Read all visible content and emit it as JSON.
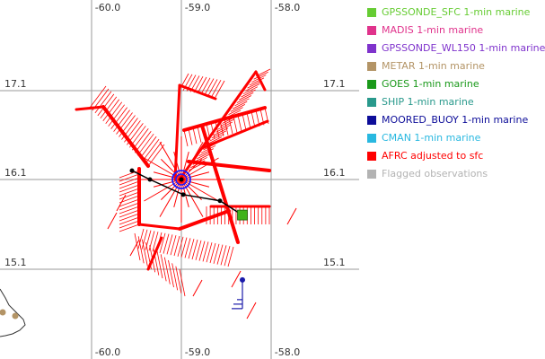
{
  "map": {
    "longitude_ticks": [
      "-60.0",
      "-59.0",
      "-58.0"
    ],
    "latitude_ticks": [
      "17.1",
      "16.1",
      "15.1"
    ],
    "storm_center": {
      "lon": -59.0,
      "lat": 16.1
    },
    "track": [
      {
        "lon": -58.32,
        "lat": 15.7
      },
      {
        "lon": -58.57,
        "lat": 15.86
      },
      {
        "lon": -58.98,
        "lat": 15.93
      },
      {
        "lon": -59.35,
        "lat": 16.1
      },
      {
        "lon": -59.55,
        "lat": 16.2
      }
    ],
    "sfc_marker": {
      "lon": -58.32,
      "lat": 15.7,
      "color": "#3fb31b"
    },
    "barb_marker": {
      "lon": -58.32,
      "lat": 14.97
    },
    "flight_color": "#ff0000",
    "grid_color": "#999999",
    "track_color": "#000000",
    "center_ring_color": "#1a1aff"
  },
  "legend": [
    {
      "label": "GPSSONDE_SFC 1-min marine",
      "color": "#66cc33"
    },
    {
      "label": "MADIS 1-min marine",
      "color": "#e0338c"
    },
    {
      "label": "GPSSONDE_WL150 1-min marine",
      "color": "#7f33cc"
    },
    {
      "label": "METAR 1-min marine",
      "color": "#b39466"
    },
    {
      "label": "GOES 1-min marine",
      "color": "#1a991a"
    },
    {
      "label": "SHIP 1-min marine",
      "color": "#29998c"
    },
    {
      "label": "MOORED_BUOY 1-min marine",
      "color": "#0d0d99"
    },
    {
      "label": "CMAN 1-min marine",
      "color": "#29b8e0"
    },
    {
      "label": "AFRC adjusted to sfc",
      "color": "#ff0000"
    },
    {
      "label": "Flagged observations",
      "color": "#b3b3b3"
    }
  ]
}
